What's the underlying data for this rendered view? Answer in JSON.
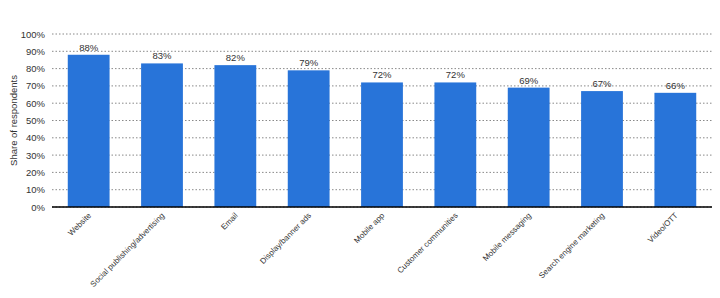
{
  "chart_data": {
    "type": "bar",
    "y_label": "Share of respondents",
    "categories": [
      "Website",
      "Social publishing/advertising",
      "Email",
      "Display/banner ads",
      "Mobile app",
      "Customer communities",
      "Mobile messaging",
      "Search engine marketing",
      "Video/OTT"
    ],
    "values": [
      88,
      83,
      82,
      79,
      72,
      72,
      69,
      67,
      66
    ],
    "value_labels": [
      "88%",
      "83%",
      "82%",
      "79%",
      "72%",
      "72%",
      "69%",
      "67%",
      "66%"
    ],
    "color": "#2874d9",
    "ylim": [
      0,
      100
    ],
    "yticks": [
      {
        "value": 0,
        "label": "0%"
      },
      {
        "value": 10,
        "label": "10%"
      },
      {
        "value": 20,
        "label": "20%"
      },
      {
        "value": 30,
        "label": "30%"
      },
      {
        "value": 40,
        "label": "40%"
      },
      {
        "value": 50,
        "label": "50%"
      },
      {
        "value": 60,
        "label": "60%"
      },
      {
        "value": 70,
        "label": "70%"
      },
      {
        "value": 80,
        "label": "80%"
      },
      {
        "value": 90,
        "label": "90%"
      },
      {
        "value": 100,
        "label": "100%"
      }
    ],
    "grid": true,
    "data_labels": true
  }
}
